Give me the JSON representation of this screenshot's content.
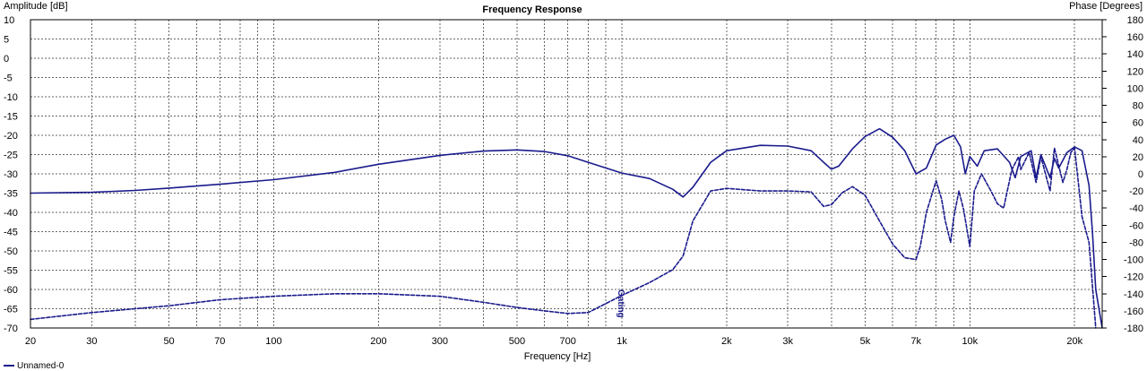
{
  "chart_data": {
    "type": "line",
    "title": "Frequency Response",
    "xlabel": "Frequency [Hz]",
    "ylabel_left": "Amplitude [dB]",
    "ylabel_right": "Phase [Degrees]",
    "x_scale": "log",
    "xlim": [
      20,
      24000
    ],
    "ylim_left": [
      -70,
      10
    ],
    "ylim_right": [
      -180,
      180
    ],
    "x_ticks": [
      {
        "value": 20,
        "label": "20"
      },
      {
        "value": 30,
        "label": "30"
      },
      {
        "value": 50,
        "label": "50"
      },
      {
        "value": 70,
        "label": "70"
      },
      {
        "value": 100,
        "label": "100"
      },
      {
        "value": 200,
        "label": "200"
      },
      {
        "value": 300,
        "label": "300"
      },
      {
        "value": 500,
        "label": "500"
      },
      {
        "value": 700,
        "label": "700"
      },
      {
        "value": 1000,
        "label": "1k"
      },
      {
        "value": 2000,
        "label": "2k"
      },
      {
        "value": 3000,
        "label": "3k"
      },
      {
        "value": 5000,
        "label": "5k"
      },
      {
        "value": 7000,
        "label": "7k"
      },
      {
        "value": 10000,
        "label": "10k"
      },
      {
        "value": 20000,
        "label": "20k"
      }
    ],
    "y_left_ticks": [
      10,
      5,
      0,
      -5,
      -10,
      -15,
      -20,
      -25,
      -30,
      -35,
      -40,
      -45,
      -50,
      -55,
      -60,
      -65,
      -70
    ],
    "y_right_ticks": [
      180,
      160,
      140,
      120,
      100,
      80,
      60,
      40,
      20,
      0,
      -20,
      -40,
      -60,
      -80,
      -100,
      -120,
      -140,
      -160,
      -180
    ],
    "grid": true,
    "legend": {
      "position": "bottom-left",
      "label": "Unnamed-0"
    },
    "marker": {
      "label": "Gating",
      "x": 1000
    },
    "colors": {
      "curve": "#1a1a8c",
      "grid": "#666666",
      "frame": "#000000"
    },
    "series": [
      {
        "name": "Unnamed-0",
        "axis": "left",
        "style": "solid",
        "x": [
          20,
          30,
          40,
          50,
          70,
          100,
          150,
          200,
          300,
          400,
          500,
          600,
          700,
          800,
          1000,
          1200,
          1400,
          1500,
          1600,
          1800,
          2000,
          2500,
          3000,
          3500,
          3800,
          4000,
          4200,
          4600,
          5000,
          5500,
          6000,
          6500,
          7000,
          7500,
          8000,
          8500,
          9000,
          9400,
          9700,
          10000,
          10500,
          11000,
          12000,
          13000,
          13500,
          14000,
          15000,
          15500,
          16000,
          17000,
          17500,
          18000,
          19000,
          20000,
          21000,
          22000,
          22500,
          23000,
          24000
        ],
        "y": [
          -35,
          -34.8,
          -34.3,
          -33.7,
          -32.7,
          -31.5,
          -29.6,
          -27.5,
          -25.2,
          -24.1,
          -23.8,
          -24.2,
          -25.3,
          -27,
          -29.8,
          -31.2,
          -34,
          -36,
          -33.5,
          -27,
          -24,
          -22.6,
          -22.8,
          -24,
          -27,
          -28.8,
          -28,
          -23.5,
          -20.3,
          -18.3,
          -20.5,
          -24,
          -30,
          -28.5,
          -22.5,
          -21,
          -20,
          -23,
          -30,
          -25.5,
          -28,
          -24,
          -23.5,
          -27,
          -31,
          -25.5,
          -24,
          -31,
          -25,
          -31,
          -26,
          -28.5,
          -24.5,
          -23,
          -24,
          -33,
          -45,
          -60,
          -70
        ]
      },
      {
        "name": "Unnamed-0",
        "axis": "right",
        "style": "dashed",
        "x": [
          20,
          30,
          50,
          70,
          100,
          150,
          200,
          300,
          400,
          500,
          600,
          700,
          800,
          1000,
          1200,
          1400,
          1500,
          1600,
          1800,
          2000,
          2500,
          3000,
          3500,
          3800,
          4000,
          4300,
          4600,
          5000,
          5500,
          6000,
          6500,
          7000,
          7200,
          7500,
          8000,
          8300,
          8500,
          8800,
          9000,
          9300,
          9600,
          10000,
          10300,
          10800,
          11500,
          12000,
          12500,
          13200,
          13800,
          14000,
          14800,
          15500,
          16000,
          17000,
          17500,
          18500,
          19000,
          19500,
          20000,
          21000,
          22000,
          23000
        ],
        "y": [
          -170,
          -162,
          -154,
          -147,
          -143,
          -140,
          -140,
          -143,
          -150,
          -156,
          -160,
          -163,
          -162,
          -142,
          -127,
          -112,
          -96,
          -55,
          -20,
          -17,
          -20,
          -20,
          -21,
          -38,
          -36,
          -22,
          -15,
          -25,
          -55,
          -82,
          -98,
          -100,
          -85,
          -45,
          -8,
          -30,
          -55,
          -80,
          -50,
          -20,
          -42,
          -85,
          -20,
          0,
          -20,
          -35,
          -40,
          5,
          20,
          5,
          25,
          -10,
          20,
          -20,
          30,
          -10,
          5,
          25,
          30,
          -50,
          -80,
          -180
        ]
      }
    ]
  }
}
